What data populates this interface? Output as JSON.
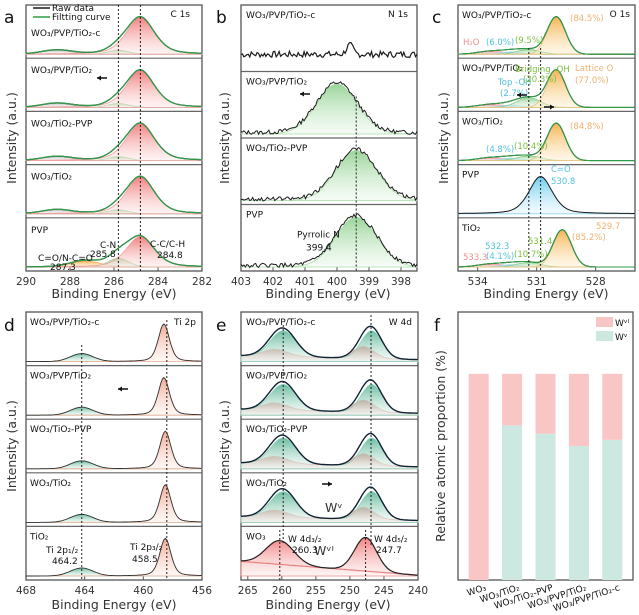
{
  "figure": {
    "panel_letters": [
      "a",
      "b",
      "c",
      "d",
      "e",
      "f"
    ],
    "y_axis_label": "Intensity (a.u.)",
    "x_axis_label": "Binding Energy (eV)"
  },
  "colors": {
    "raw": "#1a1a1a",
    "fit": "#2e9e47",
    "red": "#f08a8a",
    "orange": "#f2b560",
    "green": "#8ed08e",
    "cyan": "#5fc8e8",
    "teal": "#5fb89a",
    "wv": "#cde8e0",
    "wvi": "#f9c6c6"
  },
  "chart_data": [
    {
      "id": "a",
      "type": "line",
      "title": "C 1s",
      "xlabel": "Binding Energy (eV)",
      "ylabel": "Intensity (a.u.)",
      "xlim": [
        290,
        282
      ],
      "xticks": [
        290,
        288,
        286,
        284,
        282
      ],
      "legend": [
        "Raw data",
        "Filtting curve"
      ],
      "legend_position": "top-left",
      "samples": [
        "WO3/PVP/TiO2-c",
        "WO3/PVP/TiO2",
        "WO3/TiO2-PVP",
        "WO3/TiO2",
        "PVP"
      ],
      "reference_lines": [
        285.8,
        284.8
      ],
      "peaks": [
        {
          "sample": "PVP",
          "label": "C=O/N-C=O",
          "position": 287.3
        },
        {
          "sample": "PVP",
          "label": "C-N",
          "position": 285.8
        },
        {
          "sample": "PVP",
          "label": "C-C/C-H",
          "position": 284.8
        }
      ],
      "arrow": {
        "sample": "WO3/PVP/TiO2",
        "direction": "left"
      }
    },
    {
      "id": "b",
      "type": "line",
      "title": "N 1s",
      "xlabel": "Binding Energy (eV)",
      "ylabel": "Intensity (a.u.)",
      "xlim": [
        403,
        397.5
      ],
      "xticks": [
        403,
        402,
        401,
        400,
        399,
        398
      ],
      "samples": [
        "WO3/PVP/TiO2-c",
        "WO3/PVP/TiO2",
        "WO3/TiO2-PVP",
        "PVP"
      ],
      "reference_lines": [
        399.4
      ],
      "peaks": [
        {
          "sample": "PVP",
          "label": "Pyrrolic N",
          "position": 399.4
        }
      ],
      "arrow": {
        "sample": "WO3/PVP/TiO2",
        "direction": "left"
      }
    },
    {
      "id": "c",
      "type": "line",
      "title": "O 1s",
      "xlabel": "Binding Energy (eV)",
      "ylabel": "Intensity (a.u.)",
      "xlim": [
        535,
        526
      ],
      "xticks": [
        534,
        531,
        528
      ],
      "samples": [
        "WO3/PVP/TiO2-c",
        "WO3/PVP/TiO2",
        "WO3/TiO2",
        "PVP",
        "TiO2"
      ],
      "reference_lines": [
        531.4,
        530.8
      ],
      "annotations": [
        {
          "sample": "WO3/PVP/TiO2-c",
          "texts": [
            "H2O",
            "(6.0%)",
            "(9.5%)",
            "(84.5%)"
          ]
        },
        {
          "sample": "WO3/PVP/TiO2",
          "texts": [
            "Top -OH (2.7%)",
            "Bridging -OH (20.3%)",
            "Lattice O (77.0%)"
          ]
        },
        {
          "sample": "WO3/TiO2",
          "texts": [
            "(4.8%)",
            "(10.4%)",
            "(84.8%)"
          ]
        },
        {
          "sample": "PVP",
          "texts": [
            "C=O 530.8"
          ]
        },
        {
          "sample": "TiO2",
          "texts": [
            "533.3",
            "532.3 (4.1%)",
            "531.4 (10.7%)",
            "529.7 (85.2%)"
          ]
        }
      ]
    },
    {
      "id": "d",
      "type": "line",
      "title": "Ti 2p",
      "xlabel": "Binding Energy (eV)",
      "ylabel": "Intensity (a.u.)",
      "xlim": [
        468,
        456
      ],
      "xticks": [
        468,
        464,
        460,
        456
      ],
      "samples": [
        "WO3/PVP/TiO2-c",
        "WO3/PVP/TiO2",
        "WO3/TiO2-PVP",
        "WO3/TiO2",
        "TiO2"
      ],
      "reference_lines": [
        464.2,
        458.5
      ],
      "peaks": [
        {
          "sample": "TiO2",
          "label": "Ti 2p1/2",
          "position": 464.2
        },
        {
          "sample": "TiO2",
          "label": "Ti 2p3/2",
          "position": 458.5
        }
      ],
      "arrow": {
        "sample": "WO3/PVP/TiO2",
        "direction": "left"
      }
    },
    {
      "id": "e",
      "type": "line",
      "title": "W 4d",
      "xlabel": "Binding Energy (eV)",
      "ylabel": "Intensity (a.u.)",
      "xlim": [
        266,
        240
      ],
      "xticks": [
        265,
        260,
        255,
        250,
        245,
        240
      ],
      "samples": [
        "WO3/PVP/TiO2-c",
        "WO3/PVP/TiO2",
        "WO3/TiO2-PVP",
        "WO3/TiO2",
        "WO3"
      ],
      "reference_lines": [
        260.3,
        247.7
      ],
      "peaks": [
        {
          "sample": "WO3",
          "label": "W 4d3/2",
          "position": 260.3
        },
        {
          "sample": "WO3",
          "label": "W 4d5/2",
          "position": 247.7
        }
      ],
      "species_labels": [
        "WV",
        "WVI"
      ],
      "arrow": {
        "sample": "WO3/TiO2",
        "direction": "right"
      }
    },
    {
      "id": "f",
      "type": "bar",
      "stacked": true,
      "ylabel": "Relative atomic proportion (%)",
      "categories": [
        "WO3",
        "WO3/TiO2",
        "WO3/TiO2-PVP",
        "WO3/PVP/TiO2",
        "WO3/PVP/TiO2-c"
      ],
      "series": [
        {
          "name": "WV",
          "values": [
            0,
            75,
            71,
            65,
            68
          ]
        },
        {
          "name": "WVI",
          "values": [
            100,
            25,
            29,
            35,
            32
          ]
        }
      ],
      "ylim": [
        0,
        130
      ],
      "legend_position": "top-right"
    }
  ],
  "text": {
    "a": {
      "title": "C 1s",
      "legend_raw": "Raw data",
      "legend_fit": "Filtting curve",
      "s0": "WO₃/PVP/TiO₂-c",
      "s1": "WO₃/PVP/TiO₂",
      "s2": "WO₃/TiO₂-PVP",
      "s3": "WO₃/TiO₂",
      "s4": "PVP",
      "p1": "C=O/N-C=O",
      "p1v": "287.3",
      "p2": "C-N",
      "p2v": "285.8",
      "p3": "C-C/C-H",
      "p3v": "284.8"
    },
    "b": {
      "title": "N 1s",
      "s0": "WO₃/PVP/TiO₂-c",
      "s1": "WO₃/PVP/TiO₂",
      "s2": "WO₃/TiO₂-PVP",
      "s3": "PVP",
      "p1": "Pyrrolic N",
      "p1v": "399.4"
    },
    "c": {
      "title": "O 1s",
      "s0": "WO₃/PVP/TiO₂-c",
      "s1": "WO₃/PVP/TiO₂",
      "s2": "WO₃/TiO₂",
      "s3": "PVP",
      "s4": "TiO₂",
      "h2o": "H₂O",
      "a0": "(6.0%)",
      "b0": "(9.5%)",
      "c0": "(84.5%)",
      "top": "Top -OH",
      "topv": "(2.7%)",
      "brid": "Bridging -OH",
      "bridv": "(20.3%)",
      "lat": "Lattice O",
      "latv": "(77.0%)",
      "a2": "(4.8%)",
      "b2": "(10.4%)",
      "c2": "(84.8%)",
      "co": "C=O",
      "cov": "530.8",
      "t1": "533.3",
      "t2": "532.3",
      "t2p": "(4.1%)",
      "t3": "531.4",
      "t3p": "(10.7%)",
      "t4": "529.7",
      "t4p": "(85.2%)"
    },
    "d": {
      "title": "Ti 2p",
      "s0": "WO₃/PVP/TiO₂-c",
      "s1": "WO₃/PVP/TiO₂",
      "s2": "WO₃/TiO₂-PVP",
      "s3": "WO₃/TiO₂",
      "s4": "TiO₂",
      "p1": "Ti 2p₁/₂",
      "p1v": "464.2",
      "p2": "Ti 2p₃/₂",
      "p2v": "458.5"
    },
    "e": {
      "title": "W 4d",
      "s0": "WO₃/PVP/TiO₂-c",
      "s1": "WO₃/PVP/TiO₂",
      "s2": "WO₃/TiO₂-PVP",
      "s3": "WO₃/TiO₂",
      "s4": "WO₃",
      "p1": "W 4d₃/₂",
      "p1v": "260.3",
      "p2": "W 4d₅/₂",
      "p2v": "247.7",
      "wv": "Wᵛ",
      "wvi": "Wᵛᴵ"
    },
    "f": {
      "legend_wvi": "Wᵛᴵ",
      "legend_wv": "Wᵛ",
      "c0": "WO₃",
      "c1": "WO₃/TiO₂",
      "c2": "WO₃/TiO₂-PVP",
      "c3": "WO₃/PVP/TiO₂",
      "c4": "WO₃/PVP/TiO₂-c"
    }
  }
}
